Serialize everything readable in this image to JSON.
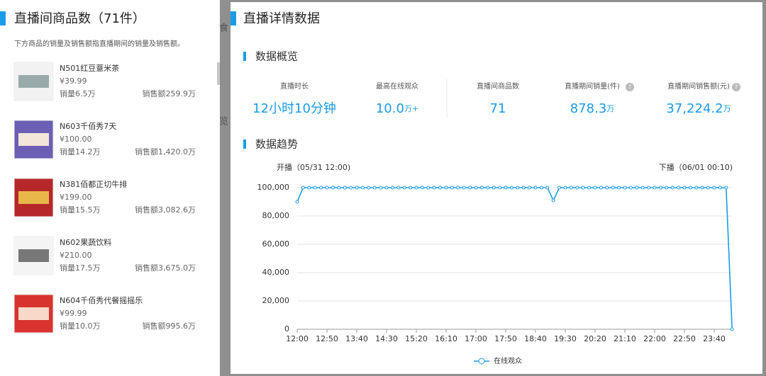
{
  "left_panel": {
    "title": "直播间商品数（71件）",
    "subtitle": "下方商品的销量及销售额指直播期间的销量及销售额。",
    "products": [
      {
        "name": "N501红豆薏米茶",
        "price": "¥39.99",
        "sales": "销量6.5万",
        "revenue": "销售额259.9万"
      },
      {
        "name": "N603千佰秀7天",
        "price": "¥100.00",
        "sales": "销量14.2万",
        "revenue": "销售额1,420.0万"
      },
      {
        "name": "N381佰都正切牛排",
        "price": "¥199.00",
        "sales": "销量15.5万",
        "revenue": "销售额3,082.6万"
      },
      {
        "name": "N602果蔬饮料",
        "price": "¥210.00",
        "sales": "销量17.5万",
        "revenue": "销售额3,675.0万"
      },
      {
        "name": "N604千佰秀代餐摇摇乐",
        "price": "¥99.99",
        "sales": "销量10.0万",
        "revenue": "销售额995.6万"
      }
    ]
  },
  "background_texts": [
    "食",
    "览"
  ],
  "right_panel": {
    "title": "直播详情数据",
    "overview": {
      "heading": "数据概览",
      "stats": [
        {
          "label": "直播时长",
          "value": "12小时10分钟"
        },
        {
          "label": "最高在线观众",
          "value": "10.0",
          "unit": "万+"
        },
        {
          "label": "直播间商品数",
          "value": "71"
        },
        {
          "label": "直播期间销量(件)",
          "value": "878.3",
          "unit": "万",
          "help": "?"
        },
        {
          "label": "直播期间销售额(元)",
          "value": "37,224.2",
          "unit": "万",
          "help": "?"
        }
      ]
    },
    "trend_heading": "数据趋势"
  },
  "chart_data": {
    "type": "line",
    "start_label": "开播（05/31 12:00)",
    "end_label": "下播（06/01 00:10)",
    "x": [
      "12:00",
      "12:10",
      "12:20",
      "12:30",
      "12:40",
      "12:50",
      "13:00",
      "13:10",
      "13:20",
      "13:30",
      "13:40",
      "13:50",
      "14:00",
      "14:10",
      "14:20",
      "14:30",
      "14:40",
      "14:50",
      "15:00",
      "15:10",
      "15:20",
      "15:30",
      "15:40",
      "15:50",
      "16:00",
      "16:10",
      "16:20",
      "16:30",
      "16:40",
      "16:50",
      "17:00",
      "17:10",
      "17:20",
      "17:30",
      "17:40",
      "17:50",
      "18:00",
      "18:10",
      "18:20",
      "18:30",
      "18:40",
      "18:50",
      "19:00",
      "19:10",
      "19:20",
      "19:30",
      "19:40",
      "19:50",
      "20:00",
      "20:10",
      "20:20",
      "20:30",
      "20:40",
      "20:50",
      "21:00",
      "21:10",
      "21:20",
      "21:30",
      "21:40",
      "21:50",
      "22:00",
      "22:10",
      "22:20",
      "22:30",
      "22:40",
      "22:50",
      "23:00",
      "23:10",
      "23:20",
      "23:30",
      "23:40",
      "23:50",
      "00:00",
      "00:10"
    ],
    "series": [
      {
        "name": "在线观众",
        "color": "#1a9be8",
        "values": [
          90000,
          100000,
          100000,
          100000,
          100000,
          100000,
          100000,
          100000,
          100000,
          100000,
          100000,
          100000,
          100000,
          100000,
          100000,
          100000,
          100000,
          100000,
          100000,
          100000,
          100000,
          100000,
          100000,
          100000,
          100000,
          100000,
          100000,
          100000,
          100000,
          100000,
          100000,
          100000,
          100000,
          100000,
          100000,
          100000,
          100000,
          100000,
          100000,
          100000,
          100000,
          100000,
          100000,
          91000,
          100000,
          100000,
          100000,
          100000,
          100000,
          100000,
          100000,
          100000,
          100000,
          100000,
          100000,
          100000,
          100000,
          100000,
          100000,
          100000,
          100000,
          100000,
          100000,
          100000,
          100000,
          100000,
          100000,
          100000,
          100000,
          100000,
          100000,
          100000,
          100000,
          0
        ]
      }
    ],
    "xticks": [
      "12:00",
      "12:50",
      "13:40",
      "14:30",
      "15:20",
      "16:10",
      "17:00",
      "17:50",
      "18:40",
      "19:30",
      "20:20",
      "21:10",
      "22:00",
      "22:50",
      "23:40"
    ],
    "ylim": [
      0,
      100000
    ],
    "yticks": [
      0,
      {
        "value": 20000,
        "label": "20,000"
      },
      {
        "value": 40000,
        "label": "40,000"
      },
      {
        "value": 60000,
        "label": "60,000"
      },
      {
        "value": 80000,
        "label": "80,000"
      },
      {
        "value": 100000,
        "label": "100,000"
      }
    ],
    "grid": true
  }
}
